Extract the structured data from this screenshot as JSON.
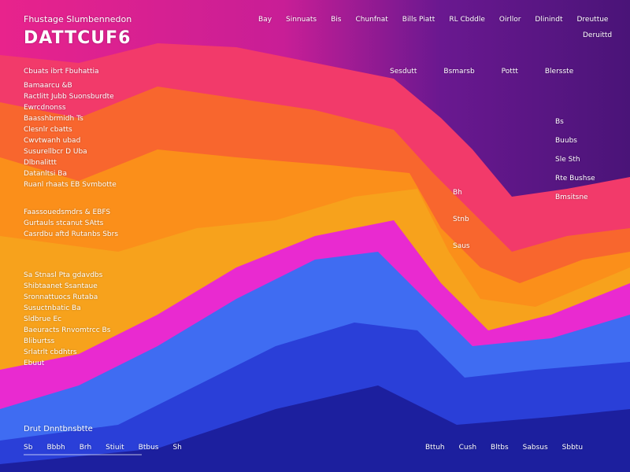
{
  "header": {
    "brand": "Fhustage Slumbennedon",
    "title": "DATTCUF6",
    "nav": [
      "Bay",
      "Sinnuats",
      "Bis",
      "Chunfnat",
      "Bills Piatt",
      "RL Cbddle",
      "Oirllor",
      "Dlinindt",
      "Dreuttue"
    ],
    "nav_sub": "Deruittd"
  },
  "columns": [
    "Sesdutt",
    "Bsmarsb",
    "Pottt",
    "Blersste"
  ],
  "left_heading": "Cbuats ibrt Fbuhattia",
  "left_list": [
    "Bamaarcu &B",
    "Ractlitt Jubb Suonsburdte",
    "Ewrcdnonss",
    "Baasshbrmidh Ts",
    "Clesnlr cbatts",
    "Cwvtwanh ubad",
    "Susurellbcr D Uba",
    "Dlbnalittt",
    "Datanltsi Ba",
    "Ruanl rhaats EB Svmbotte"
  ],
  "left_block2": [
    "Faassouedsmdrs & EBFS",
    "Gurtauls stcanut SAtts",
    "Casrdbu aftd Rutanbs Sbrs"
  ],
  "left_block3": [
    "Sa Stnasl Pta gdavdbs",
    "Shibtaanet Ssantaue",
    "Sronnattuocs Rutaba",
    "Susuctnbatic Ba",
    "Sldbrue Ec",
    "Baeuracts Rnvomtrcc Bs",
    "Bliburtss",
    "Srlatrlt cbdhtrs",
    "Ebuut"
  ],
  "right_labels": [
    "Bs",
    "Buubs",
    "Sle Sth",
    "Rte Bushse",
    "Bmsitsne"
  ],
  "mid_labels": [
    "Bh",
    "Stnb",
    "Saus"
  ],
  "footer": {
    "title": "Drut Dnntbnsbtte",
    "items": [
      "Sb",
      "Bbbh",
      "Brh",
      "Stiuit",
      "Btbus",
      "Sh"
    ],
    "right_items": [
      "Bttuh",
      "Cush",
      "Bltbs",
      "Sabsus",
      "Sbbtu"
    ]
  }
}
